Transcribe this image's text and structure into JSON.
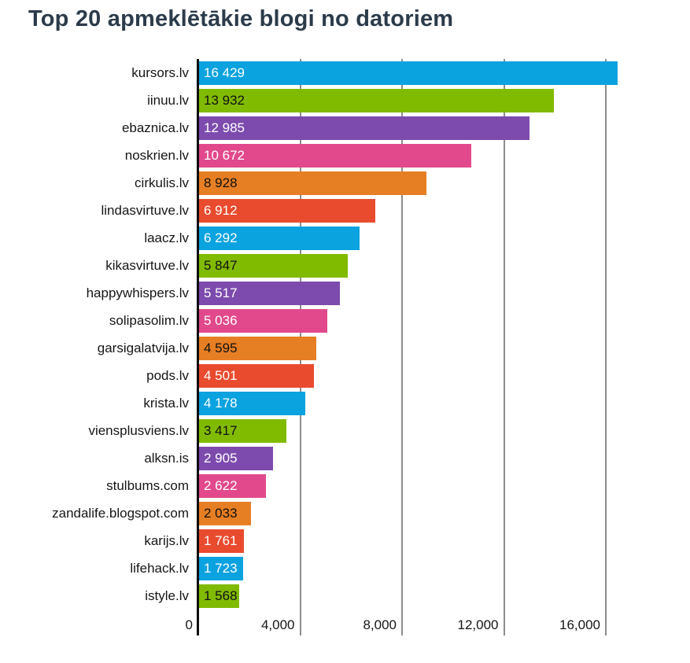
{
  "title": "Top 20 apmeklētākie blogi no datoriem",
  "chart_data": {
    "type": "bar",
    "orientation": "horizontal",
    "title": "Top 20 apmeklētākie blogi no datoriem",
    "categories": [
      "kursors.lv",
      "iinuu.lv",
      "ebaznica.lv",
      "noskrien.lv",
      "cirkulis.lv",
      "lindasvirtuve.lv",
      "laacz.lv",
      "kikasvirtuve.lv",
      "happywhispers.lv",
      "solipasolim.lv",
      "garsigalatvija.lv",
      "pods.lv",
      "krista.lv",
      "viensplusviens.lv",
      "alksn.is",
      "stulbums.com",
      "zandalife.blogspot.com",
      "karijs.lv",
      "lifehack.lv",
      "istyle.lv"
    ],
    "values": [
      16429,
      13932,
      12985,
      10672,
      8928,
      6912,
      6292,
      5847,
      5517,
      5036,
      4595,
      4501,
      4178,
      3417,
      2905,
      2622,
      2033,
      1761,
      1723,
      1568
    ],
    "display_values": [
      "16 429",
      "13 932",
      "12 985",
      "10 672",
      "8 928",
      "6 912",
      "6 292",
      "5 847",
      "5 517",
      "5 036",
      "4 595",
      "4 501",
      "4 178",
      "3 417",
      "2 905",
      "2 622",
      "2 033",
      "1 761",
      "1 723",
      "1 568"
    ],
    "xlabel": "",
    "ylabel": "",
    "xticks": [
      0,
      4000,
      8000,
      12000,
      16000
    ],
    "xtick_labels": [
      "0",
      "4,000",
      "8,000",
      "12,000",
      "16,000"
    ],
    "xlim": [
      0,
      19300
    ],
    "grid": "vertical-only",
    "legend": "none",
    "bar_value_labels_inside": true,
    "palette": [
      {
        "name": "blue",
        "hex": "#0aa2df",
        "text": "#ffffff"
      },
      {
        "name": "green",
        "hex": "#80bb00",
        "text": "#111111"
      },
      {
        "name": "purple",
        "hex": "#7d4bad",
        "text": "#ffffff"
      },
      {
        "name": "pink",
        "hex": "#e1498c",
        "text": "#ffffff"
      },
      {
        "name": "orange",
        "hex": "#e67e23",
        "text": "#111111"
      },
      {
        "name": "red",
        "hex": "#e94b2f",
        "text": "#ffffff"
      }
    ],
    "colors": {
      "gridline": "#8d8d8d",
      "axis_line": "#0d0d0d",
      "title": "#2c3b4a",
      "tick_label": "#161616",
      "category_label": "#161616"
    }
  }
}
